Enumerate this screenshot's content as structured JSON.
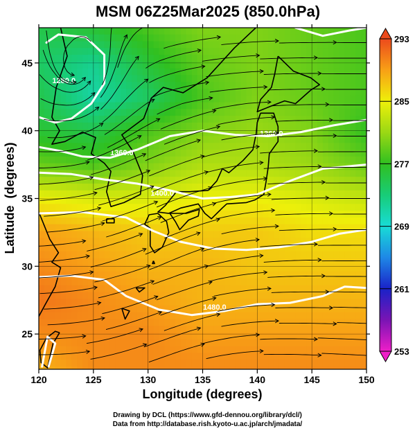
{
  "chart_data": {
    "type": "heatmap",
    "title": "MSM 06Z25Mar2025 (850.0hPa)",
    "xlabel": "Longitude (degrees)",
    "ylabel": "Latitude  (degrees)",
    "xlim": [
      120,
      150
    ],
    "ylim": [
      22.4,
      47.6
    ],
    "xticks": [
      120,
      125,
      130,
      135,
      140,
      145,
      150
    ],
    "yticks": [
      25,
      30,
      35,
      40,
      45
    ],
    "colorbar": {
      "range": [
        253,
        293
      ],
      "ticks": [
        253,
        261,
        269,
        277,
        285,
        293
      ],
      "extend": "both",
      "colors": [
        {
          "v": 253,
          "c": "#ee1ec8"
        },
        {
          "v": 257,
          "c": "#7a14b4"
        },
        {
          "v": 261,
          "c": "#1a22c8"
        },
        {
          "v": 265,
          "c": "#1e88e6"
        },
        {
          "v": 269,
          "c": "#18dcd6"
        },
        {
          "v": 273,
          "c": "#18cc78"
        },
        {
          "v": 277,
          "c": "#30c020"
        },
        {
          "v": 281,
          "c": "#9ad814"
        },
        {
          "v": 285,
          "c": "#eef00a"
        },
        {
          "v": 289,
          "c": "#f8a016"
        },
        {
          "v": 293,
          "c": "#ec4a1c"
        }
      ]
    },
    "temperature_grid": {
      "lon": [
        120,
        125,
        130,
        135,
        140,
        145,
        150
      ],
      "lat": [
        47.5,
        45,
        42.5,
        40,
        37.5,
        35,
        32.5,
        30,
        27.5,
        25,
        22.5
      ],
      "values": [
        [
          275,
          276,
          278,
          280,
          280,
          279,
          278
        ],
        [
          274,
          272,
          276,
          279,
          280,
          279,
          278
        ],
        [
          275,
          271,
          274,
          278,
          280,
          279,
          278
        ],
        [
          276,
          275,
          278,
          280,
          281,
          280,
          277
        ],
        [
          279,
          278,
          280,
          282,
          282,
          281,
          279
        ],
        [
          285,
          284,
          284,
          285,
          285,
          284,
          283
        ],
        [
          289,
          288,
          287,
          287,
          287,
          286,
          286
        ],
        [
          290,
          289,
          288,
          288,
          287,
          287,
          287
        ],
        [
          291,
          290,
          289,
          288,
          288,
          288,
          288
        ],
        [
          290,
          290,
          290,
          289,
          289,
          289,
          289
        ],
        [
          288,
          290,
          290,
          290,
          290,
          290,
          290
        ]
      ]
    },
    "contours": [
      {
        "label": "1280.0",
        "label_lon": 122.3,
        "label_lat": 43.5
      },
      {
        "label": "1360.0",
        "label_lon": 141.3,
        "label_lat": 39.6
      },
      {
        "label": "1360.0",
        "label_lon": 127.6,
        "label_lat": 38.2
      },
      {
        "label": "1400.0",
        "label_lon": 131.3,
        "label_lat": 35.2
      },
      {
        "label": "1480.0",
        "label_lon": 136.1,
        "label_lat": 26.8
      }
    ],
    "credits": [
      "Drawing by DCL (https://www.gfd-dennou.org/library/dcl/)",
      "Data from http://database.rish.kyoto-u.ac.jp/arch/jmadata/"
    ]
  }
}
